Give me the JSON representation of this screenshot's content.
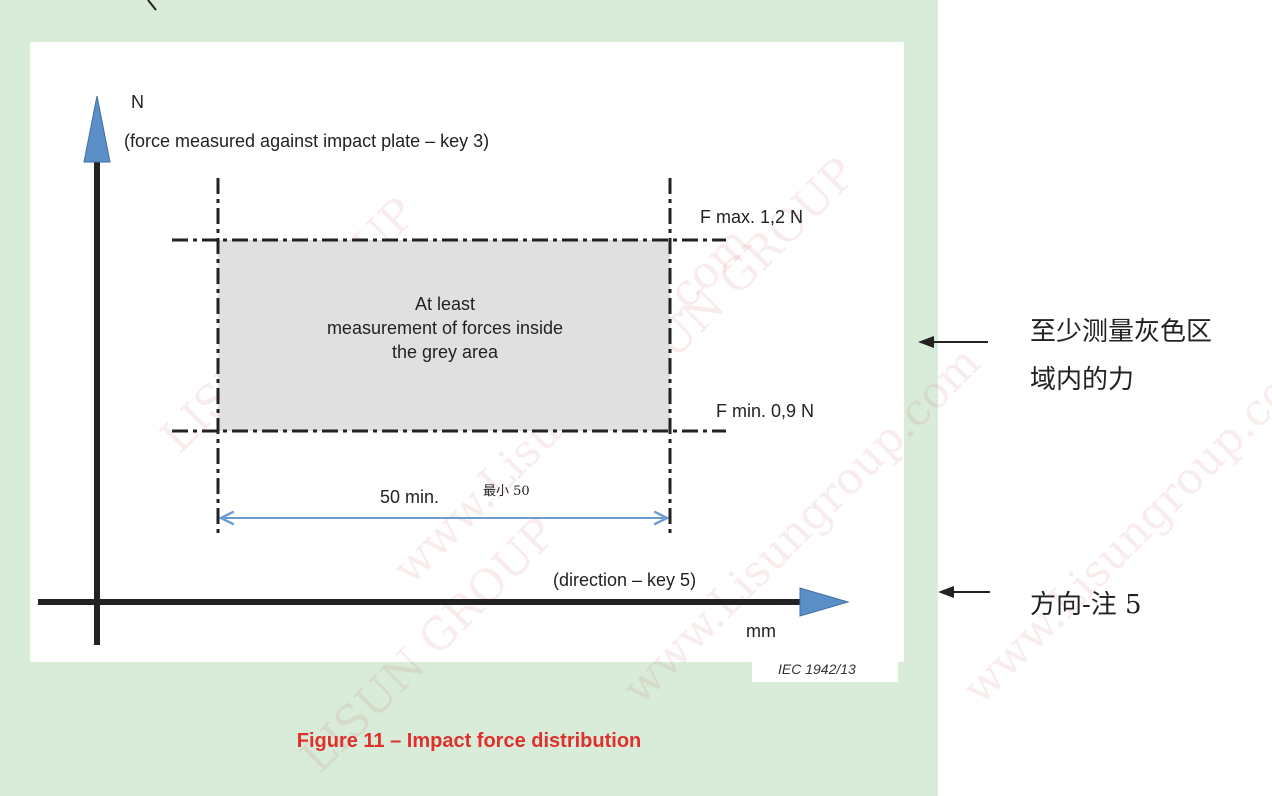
{
  "y_axis": {
    "unit": "N",
    "description": "(force measured against impact plate – key 3)"
  },
  "x_axis": {
    "unit": "mm",
    "description": "(direction – key 5)"
  },
  "limits": {
    "f_max": "F max. 1,2 N",
    "f_min": "F min. 0,9 N"
  },
  "grey_area_text": [
    "At least",
    "measurement of forces inside",
    "the grey area"
  ],
  "width_label": "50 min.",
  "width_label_cn": "最小 50",
  "reference": "IEC  1942/13",
  "caption": "Figure 11 – Impact force distribution",
  "annotations_cn": {
    "grey_area_line1": "至少测量灰色区",
    "grey_area_line2": "域内的力",
    "direction": "方向-注 5"
  },
  "watermarks": [
    "LISUN GROUP",
    "www.Lisungroup.com"
  ],
  "colors": {
    "background_green": "#d9ecd9",
    "grey_area": "#e0e0e0",
    "axis": "#222222",
    "arrow_head": "#5a8fc8",
    "dimension_arrow": "#6b9bd2",
    "caption": "#e0302b"
  }
}
